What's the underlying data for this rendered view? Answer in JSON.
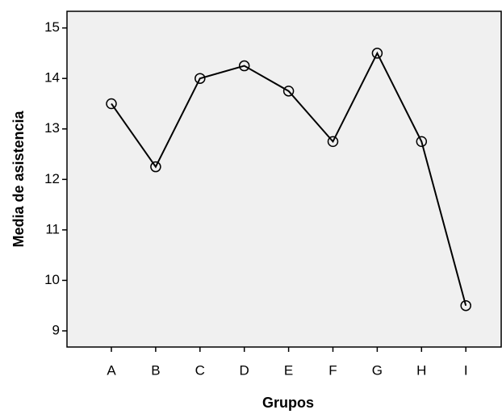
{
  "chart_data": {
    "type": "line",
    "x_label": "Grupos",
    "y_label": "Media de asistencia",
    "categories": [
      "A",
      "B",
      "C",
      "D",
      "E",
      "F",
      "G",
      "H",
      "I"
    ],
    "values": [
      13.5,
      12.25,
      14,
      14.25,
      13.75,
      12.75,
      14.5,
      12.75,
      9.5
    ],
    "color": "#000000",
    "ylim": [
      8.68,
      15.33
    ],
    "yticks": [
      9,
      10,
      11,
      12,
      13,
      14,
      15
    ],
    "grid": false
  }
}
